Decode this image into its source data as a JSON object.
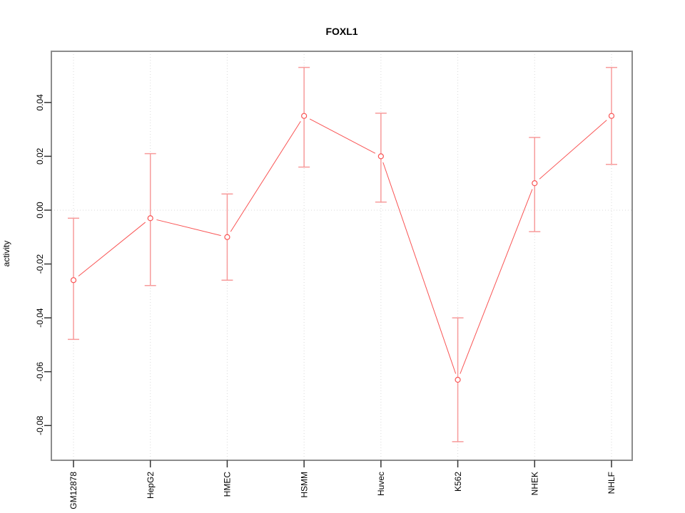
{
  "window": {
    "title": "FOXL1 activity plot"
  },
  "chart_data": {
    "type": "line",
    "title": "FOXL1",
    "xlabel": "",
    "ylabel": "activity",
    "categories": [
      "GM12878",
      "HepG2",
      "HMEC",
      "HSMM",
      "Huvec",
      "K562",
      "NHEK",
      "NHLF"
    ],
    "series": [
      {
        "name": "activity",
        "values": [
          -0.026,
          -0.003,
          -0.01,
          0.035,
          0.02,
          -0.063,
          0.01,
          0.035
        ],
        "error_low": [
          -0.048,
          -0.028,
          -0.026,
          0.016,
          0.003,
          -0.086,
          -0.008,
          0.017
        ],
        "error_high": [
          -0.003,
          0.021,
          0.006,
          0.053,
          0.036,
          -0.04,
          0.027,
          0.053
        ]
      }
    ],
    "ytick_values": [
      0.04,
      0.02,
      0.0,
      -0.02,
      -0.04,
      -0.06,
      -0.08
    ],
    "ytick_labels": [
      "0.04",
      "0.02",
      "0.00",
      "-0.02",
      "-0.04",
      "-0.06",
      "-0.08"
    ],
    "ylim": [
      -0.0929,
      0.059
    ],
    "grid": {
      "vertical_dotted_at_categories": true,
      "horizontal_dotted_at_zero": true
    },
    "legend": "none",
    "marker": "open-circle",
    "colors": {
      "line": "#f95454",
      "marker_stroke": "#f95454",
      "marker_fill": "#ffffff",
      "error_bar": "#f79b9b",
      "grid": "#d9d9d9",
      "box_border": "#8c8c8c",
      "tick": "#333333",
      "text": "#000000",
      "background": "#ffffff"
    }
  }
}
